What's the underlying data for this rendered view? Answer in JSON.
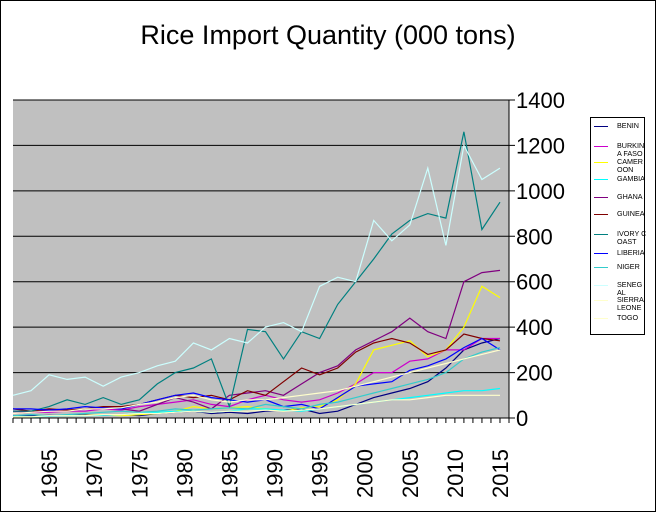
{
  "chart_data": {
    "type": "line",
    "title": "Rice Import Quantity (000 tons)",
    "xlabel": "",
    "ylabel": "",
    "xlim": [
      1961,
      2016
    ],
    "ylim": [
      0,
      1400
    ],
    "y_ticks": [
      "0",
      "200",
      "400",
      "600",
      "800",
      "1000",
      "1200",
      "1400"
    ],
    "x_ticks": [
      {
        "value": 1965,
        "label": "1965"
      },
      {
        "value": 1970,
        "label": "1970"
      },
      {
        "value": 1975,
        "label": "1975"
      },
      {
        "value": 1980,
        "label": "1980"
      },
      {
        "value": 1985,
        "label": "1985"
      },
      {
        "value": 1990,
        "label": "1990"
      },
      {
        "value": 1995,
        "label": "1995"
      },
      {
        "value": 2000,
        "label": "2000"
      },
      {
        "value": 2005,
        "label": "2005"
      },
      {
        "value": 2010,
        "label": "2010"
      },
      {
        "value": 2015,
        "label": "2015"
      }
    ],
    "grid": true,
    "legend_position": "right",
    "plot_background": "#c0c0c0",
    "series": [
      {
        "name": "BENIN",
        "legend_label": "BENIN",
        "color": "#000080",
        "x": [
          1961,
          1963,
          1965,
          1967,
          1969,
          1971,
          1973,
          1975,
          1977,
          1979,
          1981,
          1983,
          1985,
          1987,
          1989,
          1991,
          1993,
          1995,
          1997,
          1999,
          2001,
          2003,
          2005,
          2007,
          2009,
          2011,
          2013,
          2015
        ],
        "values": [
          10,
          10,
          12,
          10,
          14,
          12,
          15,
          10,
          20,
          25,
          30,
          20,
          25,
          20,
          30,
          35,
          40,
          20,
          30,
          60,
          90,
          110,
          130,
          160,
          220,
          300,
          330,
          350
        ]
      },
      {
        "name": "BURKINA FASO",
        "legend_label": "BURKIN A FASO",
        "color": "#cc00cc",
        "x": [
          1961,
          1963,
          1965,
          1967,
          1969,
          1971,
          1973,
          1975,
          1977,
          1979,
          1981,
          1983,
          1985,
          1987,
          1989,
          1991,
          1993,
          1995,
          1997,
          1999,
          2001,
          2003,
          2005,
          2007,
          2009,
          2011,
          2013,
          2015
        ],
        "values": [
          20,
          25,
          25,
          30,
          30,
          40,
          35,
          50,
          60,
          70,
          80,
          60,
          50,
          80,
          100,
          80,
          70,
          80,
          110,
          150,
          200,
          200,
          250,
          260,
          300,
          300,
          350,
          350
        ]
      },
      {
        "name": "CAMEROON",
        "legend_label": "CAMER OON",
        "color": "#ffff00",
        "x": [
          1961,
          1963,
          1965,
          1967,
          1969,
          1971,
          1973,
          1975,
          1977,
          1979,
          1981,
          1983,
          1985,
          1987,
          1989,
          1991,
          1993,
          1995,
          1997,
          1999,
          2001,
          2003,
          2005,
          2007,
          2009,
          2011,
          2013,
          2015
        ],
        "values": [
          5,
          5,
          10,
          10,
          12,
          15,
          10,
          15,
          20,
          30,
          50,
          40,
          45,
          50,
          40,
          30,
          45,
          50,
          80,
          150,
          300,
          320,
          340,
          270,
          300,
          400,
          580,
          530
        ]
      },
      {
        "name": "GAMBIA",
        "legend_label": "GAMBIA",
        "color": "#00ffff",
        "x": [
          1961,
          1963,
          1965,
          1967,
          1969,
          1971,
          1973,
          1975,
          1977,
          1979,
          1981,
          1983,
          1985,
          1987,
          1989,
          1991,
          1993,
          1995,
          1997,
          1999,
          2001,
          2003,
          2005,
          2007,
          2009,
          2011,
          2013,
          2015
        ],
        "values": [
          5,
          5,
          8,
          10,
          10,
          12,
          15,
          20,
          25,
          30,
          30,
          25,
          30,
          40,
          40,
          35,
          30,
          40,
          50,
          60,
          70,
          80,
          90,
          100,
          110,
          120,
          120,
          130
        ]
      },
      {
        "name": "GHANA",
        "legend_label": "GHANA",
        "color": "#800080",
        "x": [
          1961,
          1963,
          1965,
          1967,
          1969,
          1971,
          1973,
          1975,
          1977,
          1979,
          1981,
          1983,
          1985,
          1987,
          1989,
          1991,
          1993,
          1995,
          1997,
          1999,
          2001,
          2003,
          2005,
          2007,
          2009,
          2011,
          2013,
          2015
        ],
        "values": [
          30,
          25,
          35,
          30,
          40,
          45,
          40,
          30,
          60,
          90,
          70,
          40,
          100,
          110,
          120,
          100,
          150,
          200,
          230,
          300,
          340,
          380,
          440,
          380,
          350,
          600,
          640,
          650
        ]
      },
      {
        "name": "GUINEA",
        "legend_label": "GUINEA",
        "color": "#800000",
        "x": [
          1961,
          1963,
          1965,
          1967,
          1969,
          1971,
          1973,
          1975,
          1977,
          1979,
          1981,
          1983,
          1985,
          1987,
          1989,
          1991,
          1993,
          1995,
          1997,
          1999,
          2001,
          2003,
          2005,
          2007,
          2009,
          2011,
          2013,
          2015
        ],
        "values": [
          40,
          30,
          40,
          35,
          40,
          50,
          50,
          60,
          80,
          100,
          90,
          100,
          80,
          120,
          100,
          160,
          220,
          190,
          220,
          290,
          330,
          350,
          330,
          280,
          300,
          370,
          350,
          340
        ]
      },
      {
        "name": "IVORY COAST",
        "legend_label": "IVORY COAST",
        "color": "#008080",
        "x": [
          1961,
          1963,
          1965,
          1967,
          1969,
          1971,
          1973,
          1975,
          1977,
          1979,
          1981,
          1983,
          1985,
          1987,
          1989,
          1991,
          1993,
          1995,
          1997,
          1999,
          2001,
          2003,
          2005,
          2007,
          2009,
          2011,
          2013,
          2015
        ],
        "values": [
          30,
          30,
          50,
          80,
          60,
          90,
          60,
          80,
          150,
          200,
          220,
          260,
          50,
          390,
          380,
          260,
          380,
          350,
          500,
          600,
          700,
          810,
          870,
          900,
          880,
          1260,
          830,
          950
        ]
      },
      {
        "name": "LIBERIA",
        "legend_label": "LIBERIA",
        "color": "#0000ff",
        "x": [
          1961,
          1963,
          1965,
          1967,
          1969,
          1971,
          1973,
          1975,
          1977,
          1979,
          1981,
          1983,
          1985,
          1987,
          1989,
          1991,
          1993,
          1995,
          1997,
          1999,
          2001,
          2003,
          2005,
          2007,
          2009,
          2011,
          2013,
          2015
        ],
        "values": [
          40,
          40,
          35,
          40,
          50,
          45,
          40,
          60,
          80,
          100,
          110,
          90,
          80,
          70,
          80,
          50,
          60,
          40,
          90,
          140,
          150,
          160,
          210,
          230,
          260,
          310,
          350,
          300
        ]
      },
      {
        "name": "NIGER",
        "legend_label": "NIGER",
        "color": "#33cccc",
        "x": [
          1961,
          1963,
          1965,
          1967,
          1969,
          1971,
          1973,
          1975,
          1977,
          1979,
          1981,
          1983,
          1985,
          1987,
          1989,
          1991,
          1993,
          1995,
          1997,
          1999,
          2001,
          2003,
          2005,
          2007,
          2009,
          2011,
          2013,
          2015
        ],
        "values": [
          10,
          15,
          10,
          15,
          20,
          25,
          30,
          25,
          30,
          40,
          35,
          40,
          45,
          40,
          60,
          50,
          40,
          60,
          70,
          90,
          110,
          130,
          150,
          170,
          200,
          260,
          290,
          310
        ]
      },
      {
        "name": "SENEGAL",
        "legend_label": "SENEG AL",
        "color": "#ccffff",
        "x": [
          1961,
          1963,
          1965,
          1967,
          1969,
          1971,
          1973,
          1975,
          1977,
          1979,
          1981,
          1983,
          1985,
          1987,
          1989,
          1991,
          1993,
          1995,
          1997,
          1999,
          2001,
          2003,
          2005,
          2007,
          2009,
          2011,
          2013,
          2015
        ],
        "values": [
          100,
          120,
          190,
          170,
          180,
          140,
          180,
          200,
          230,
          250,
          330,
          300,
          350,
          330,
          400,
          420,
          380,
          580,
          620,
          600,
          870,
          780,
          850,
          1100,
          760,
          1200,
          1050,
          1100
        ]
      },
      {
        "name": "SIERRA LEONE",
        "legend_label": "SIERRA LEONE",
        "color": "#ffffcc",
        "x": [
          1961,
          1963,
          1965,
          1967,
          1969,
          1971,
          1973,
          1975,
          1977,
          1979,
          1981,
          1983,
          1985,
          1987,
          1989,
          1991,
          1993,
          1995,
          1997,
          1999,
          2001,
          2003,
          2005,
          2007,
          2009,
          2011,
          2013,
          2015
        ],
        "values": [
          20,
          25,
          30,
          30,
          40,
          40,
          45,
          60,
          70,
          90,
          100,
          80,
          70,
          80,
          80,
          90,
          100,
          110,
          120,
          140,
          160,
          180,
          200,
          220,
          240,
          260,
          280,
          300
        ]
      },
      {
        "name": "TOGO",
        "legend_label": "TOGO",
        "color": "#ffffcc",
        "x": [
          1961,
          1963,
          1965,
          1967,
          1969,
          1971,
          1973,
          1975,
          1977,
          1979,
          1981,
          1983,
          1985,
          1987,
          1989,
          1991,
          1993,
          1995,
          1997,
          1999,
          2001,
          2003,
          2005,
          2007,
          2009,
          2011,
          2013,
          2015
        ],
        "values": [
          5,
          5,
          10,
          10,
          10,
          15,
          15,
          20,
          20,
          25,
          30,
          25,
          30,
          30,
          35,
          30,
          35,
          40,
          50,
          60,
          70,
          80,
          80,
          90,
          100,
          100,
          100,
          100
        ]
      }
    ]
  }
}
